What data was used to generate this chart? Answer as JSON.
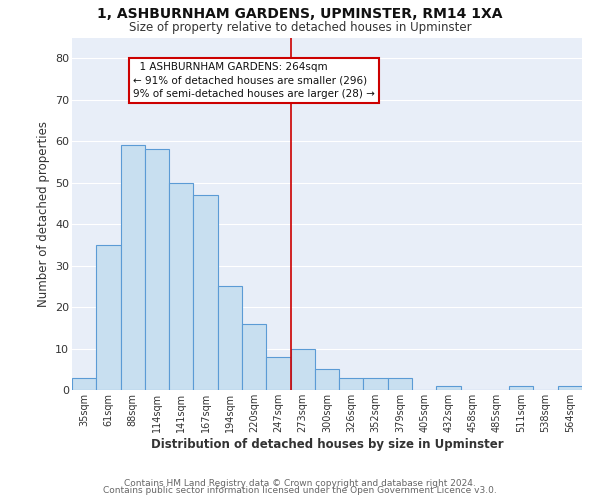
{
  "title": "1, ASHBURNHAM GARDENS, UPMINSTER, RM14 1XA",
  "subtitle": "Size of property relative to detached houses in Upminster",
  "xlabel": "Distribution of detached houses by size in Upminster",
  "ylabel": "Number of detached properties",
  "bar_labels": [
    "35sqm",
    "61sqm",
    "88sqm",
    "114sqm",
    "141sqm",
    "167sqm",
    "194sqm",
    "220sqm",
    "247sqm",
    "273sqm",
    "300sqm",
    "326sqm",
    "352sqm",
    "379sqm",
    "405sqm",
    "432sqm",
    "458sqm",
    "485sqm",
    "511sqm",
    "538sqm",
    "564sqm"
  ],
  "bar_values": [
    3,
    35,
    59,
    58,
    50,
    47,
    25,
    16,
    8,
    10,
    5,
    3,
    3,
    3,
    0,
    1,
    0,
    0,
    1,
    0,
    1
  ],
  "bar_color": "#c8dff0",
  "bar_edge_color": "#5b9bd5",
  "ylim": [
    0,
    85
  ],
  "yticks": [
    0,
    10,
    20,
    30,
    40,
    50,
    60,
    70,
    80
  ],
  "property_line_x": 8.5,
  "property_line_color": "#cc0000",
  "annotation_title": "1 ASHBURNHAM GARDENS: 264sqm",
  "annotation_line1": "← 91% of detached houses are smaller (296)",
  "annotation_line2": "9% of semi-detached houses are larger (28) →",
  "footer1": "Contains HM Land Registry data © Crown copyright and database right 2024.",
  "footer2": "Contains public sector information licensed under the Open Government Licence v3.0.",
  "fig_bg": "#ffffff",
  "plot_bg": "#e8eef8",
  "grid_color": "#ffffff"
}
